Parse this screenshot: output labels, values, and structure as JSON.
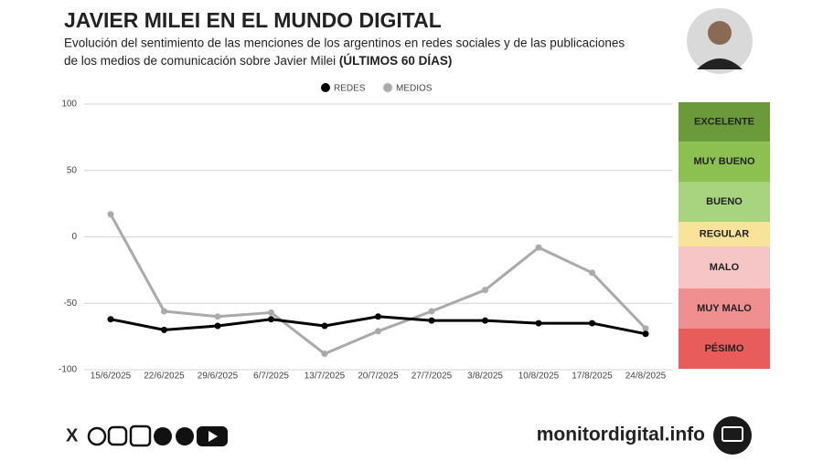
{
  "chart_data": {
    "type": "line",
    "title": "JAVIER MILEI EN EL MUNDO DIGITAL",
    "subtitle_line1": "Evolución del sentimiento de las menciones de los argentinos en redes sociales y de las publicaciones",
    "subtitle_line2": "de los medios de comunicación sobre Javier Milei",
    "subtitle_bold": "(ÚLTIMOS 60 DÍAS)",
    "categories": [
      "15/6/2025",
      "22/6/2025",
      "29/6/2025",
      "6/7/2025",
      "13/7/2025",
      "20/7/2025",
      "27/7/2025",
      "3/8/2025",
      "10/8/2025",
      "17/8/2025",
      "24/8/2025"
    ],
    "series": [
      {
        "name": "REDES",
        "color": "#000000",
        "values": [
          -62,
          -70,
          -67,
          -62,
          -67,
          -60,
          -63,
          -63,
          -65,
          -65,
          -73
        ]
      },
      {
        "name": "MEDIOS",
        "color": "#aaaaaa",
        "values": [
          17,
          -56,
          -60,
          -57,
          -88,
          -71,
          -56,
          -40,
          -8,
          -27,
          -69
        ]
      }
    ],
    "ylim": [
      -100,
      100
    ],
    "yticks": [
      -100,
      -50,
      0,
      50,
      100
    ],
    "grid": true,
    "legend": "top",
    "scale": [
      {
        "label": "EXCELENTE",
        "color": "#6a9a3a"
      },
      {
        "label": "MUY BUENO",
        "color": "#8cc152"
      },
      {
        "label": "BUENO",
        "color": "#a8d47f"
      },
      {
        "label": "REGULAR",
        "color": "#f9e39b"
      },
      {
        "label": "MALO",
        "color": "#f6c6c6"
      },
      {
        "label": "MUY MALO",
        "color": "#ef8f8f"
      },
      {
        "label": "PÉSIMO",
        "color": "#e85c5c"
      }
    ],
    "site": "monitordigital.info"
  }
}
